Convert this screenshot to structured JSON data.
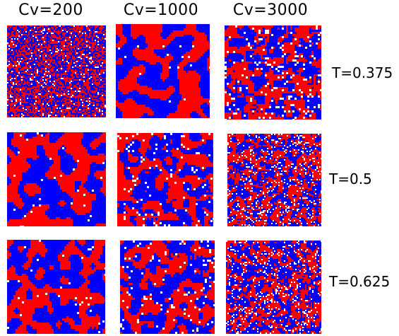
{
  "columns": [
    "Cv=200",
    "Cv=1000",
    "Cv=3000"
  ],
  "rows": [
    "T=0.375",
    "T=0.5",
    "T=0.625"
  ],
  "colors": {
    "red": "#ff0000",
    "blue": "#0000ff",
    "white": "#ffffff",
    "background": "#ffffff"
  }
}
